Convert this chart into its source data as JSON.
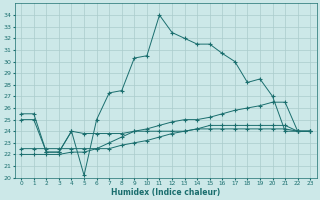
{
  "xlabel": "Humidex (Indice chaleur)",
  "background_color": "#cce8e8",
  "grid_color": "#aacccc",
  "line_color": "#1a6e6e",
  "xlim": [
    -0.5,
    23.5
  ],
  "ylim": [
    20,
    35
  ],
  "yticks": [
    20,
    21,
    22,
    23,
    24,
    25,
    26,
    27,
    28,
    29,
    30,
    31,
    32,
    33,
    34
  ],
  "xticks": [
    0,
    1,
    2,
    3,
    4,
    5,
    6,
    7,
    8,
    9,
    10,
    11,
    12,
    13,
    14,
    15,
    16,
    17,
    18,
    19,
    20,
    21,
    22,
    23
  ],
  "series": [
    {
      "x": [
        0,
        1,
        2,
        3,
        4,
        5,
        6,
        7,
        8,
        9,
        10,
        11,
        12,
        13,
        14,
        15,
        16,
        17,
        18,
        19,
        20,
        21,
        22,
        23
      ],
      "y": [
        25.5,
        25.5,
        22.2,
        22.2,
        24.0,
        20.2,
        25.0,
        27.3,
        27.5,
        30.3,
        30.5,
        34.0,
        32.5,
        32.0,
        31.5,
        31.5,
        30.7,
        30.0,
        28.2,
        28.5,
        27.0,
        24.0,
        24.0,
        24.0
      ]
    },
    {
      "x": [
        0,
        1,
        2,
        3,
        4,
        5,
        6,
        7,
        8,
        9,
        10,
        11,
        12,
        13,
        14,
        15,
        16,
        17,
        18,
        19,
        20,
        21,
        22,
        23
      ],
      "y": [
        25.0,
        25.0,
        22.2,
        22.2,
        24.0,
        23.8,
        23.8,
        23.8,
        23.8,
        24.0,
        24.0,
        24.0,
        24.0,
        24.0,
        24.2,
        24.2,
        24.2,
        24.2,
        24.2,
        24.2,
        24.2,
        24.2,
        24.0,
        24.0
      ]
    },
    {
      "x": [
        0,
        1,
        2,
        3,
        4,
        5,
        6,
        7,
        8,
        9,
        10,
        11,
        12,
        13,
        14,
        15,
        16,
        17,
        18,
        19,
        20,
        21,
        22,
        23
      ],
      "y": [
        22.0,
        22.0,
        22.0,
        22.0,
        22.2,
        22.2,
        22.5,
        23.0,
        23.5,
        24.0,
        24.2,
        24.5,
        24.8,
        25.0,
        25.0,
        25.2,
        25.5,
        25.8,
        26.0,
        26.2,
        26.5,
        26.5,
        24.0,
        24.0
      ]
    },
    {
      "x": [
        0,
        1,
        2,
        3,
        4,
        5,
        6,
        7,
        8,
        9,
        10,
        11,
        12,
        13,
        14,
        15,
        16,
        17,
        18,
        19,
        20,
        21,
        22,
        23
      ],
      "y": [
        22.5,
        22.5,
        22.5,
        22.5,
        22.5,
        22.5,
        22.5,
        22.5,
        22.8,
        23.0,
        23.2,
        23.5,
        23.8,
        24.0,
        24.2,
        24.5,
        24.5,
        24.5,
        24.5,
        24.5,
        24.5,
        24.5,
        24.0,
        24.0
      ]
    }
  ]
}
